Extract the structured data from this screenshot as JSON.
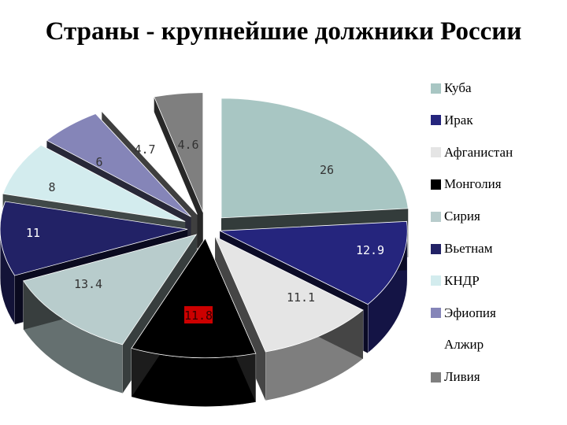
{
  "title": "Страны - крупнейшие должники России",
  "chart_data": {
    "type": "pie",
    "title": "Страны - крупнейшие должники России",
    "categories": [
      "Куба",
      "Ирак",
      "Афганистан",
      "Монголия",
      "Сирия",
      "Вьетнам",
      "КНДР",
      "Эфиопия",
      "Алжир",
      "Ливия"
    ],
    "values": [
      26,
      12.9,
      11.1,
      11.8,
      13.4,
      11,
      8,
      6,
      4.7,
      4.6
    ],
    "slice_labels": [
      "26",
      "12.9",
      "11.1",
      "11.8",
      "13.4",
      "11",
      "8",
      "6",
      "4.7",
      "4.6"
    ],
    "colors": [
      "#a8c6c3",
      "#25257d",
      "#e5e5e5",
      "#000000",
      "#b8cccc",
      "#222266",
      "#d3ecee",
      "#8585b8",
      "#ffffff",
      "#7f7f7f"
    ],
    "label_bg": [
      "",
      "",
      "",
      "#cc0000",
      "",
      "",
      "",
      "",
      "",
      ""
    ],
    "legend_position": "right",
    "style": "exploded 3D pie"
  }
}
